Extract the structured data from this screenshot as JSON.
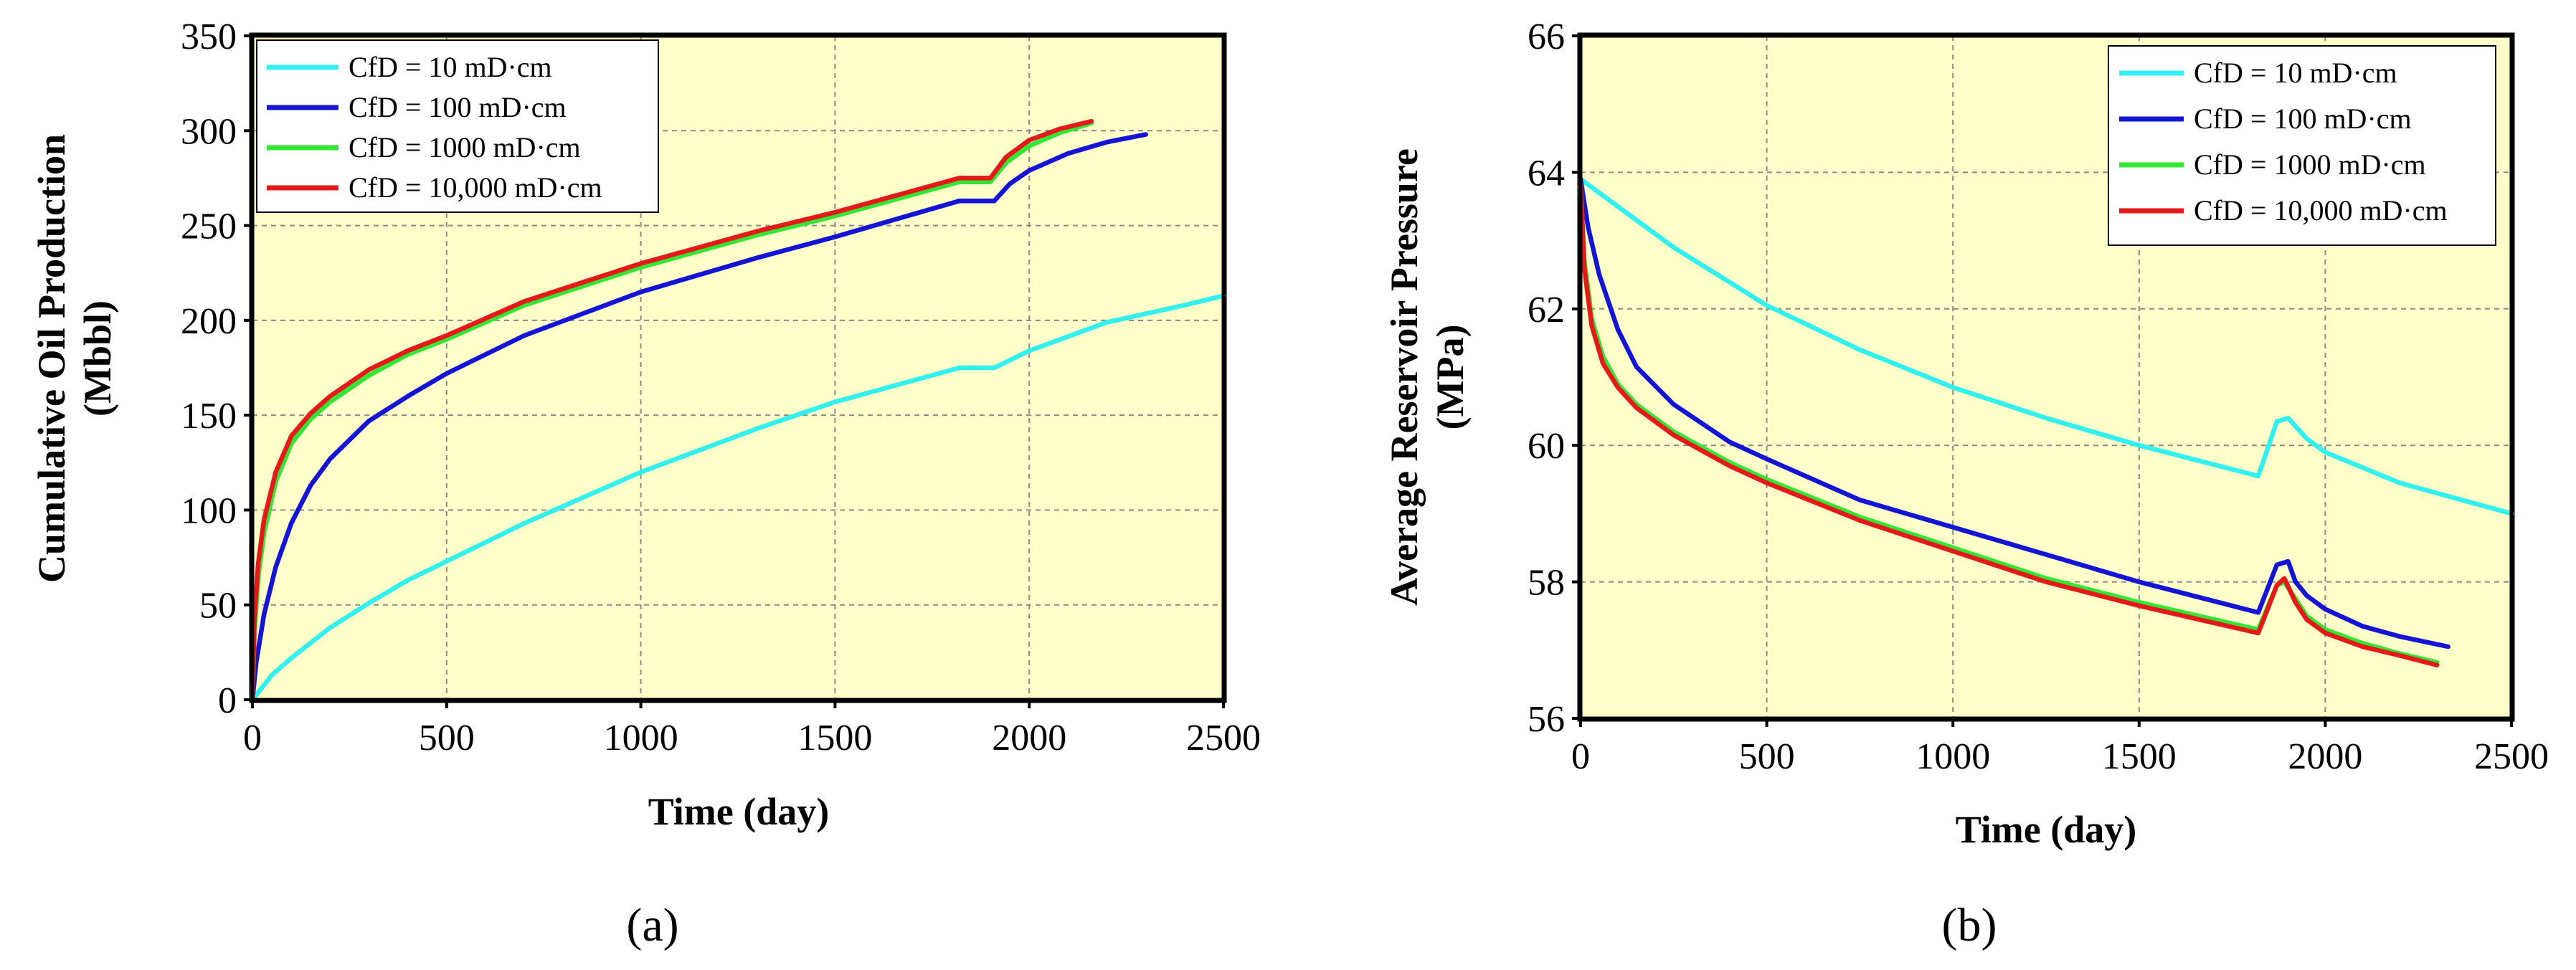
{
  "chart_data": [
    {
      "type": "line",
      "panel_label": "(a)",
      "xlabel": "Time (day)",
      "ylabel_lines": [
        "Cumulative Oil Production",
        "(Mbbl)"
      ],
      "xlim": [
        0,
        2500
      ],
      "ylim": [
        0,
        350
      ],
      "xticks": [
        0,
        500,
        1000,
        1500,
        2000,
        2500
      ],
      "yticks": [
        0,
        50,
        100,
        150,
        200,
        250,
        300,
        350
      ],
      "grid": true,
      "legend_position": "top-left",
      "series": [
        {
          "name": "CfD = 10 mD·cm",
          "color": "#33f0f0",
          "x": [
            0,
            50,
            100,
            200,
            300,
            400,
            500,
            700,
            1000,
            1300,
            1500,
            1820,
            1910,
            2000,
            2200,
            2400,
            2500
          ],
          "y": [
            0,
            13,
            22,
            38,
            51,
            63,
            73,
            93,
            120,
            143,
            157,
            175,
            175,
            184,
            199,
            208,
            213
          ]
        },
        {
          "name": "CfD = 100 mD·cm",
          "color": "#1414d4",
          "x": [
            0,
            10,
            30,
            60,
            100,
            150,
            200,
            300,
            400,
            500,
            700,
            1000,
            1300,
            1500,
            1820,
            1910,
            1950,
            2000,
            2100,
            2200,
            2300
          ],
          "y": [
            0,
            20,
            45,
            70,
            93,
            113,
            127,
            147,
            160,
            172,
            192,
            215,
            233,
            244,
            263,
            263,
            272,
            279,
            288,
            294,
            298
          ]
        },
        {
          "name": "CfD = 1000 mD·cm",
          "color": "#33e633",
          "x": [
            0,
            5,
            15,
            30,
            60,
            100,
            150,
            200,
            300,
            400,
            500,
            700,
            1000,
            1300,
            1500,
            1820,
            1900,
            1940,
            2000,
            2080,
            2160
          ],
          "y": [
            0,
            35,
            65,
            88,
            115,
            135,
            148,
            157,
            171,
            182,
            190,
            208,
            228,
            245,
            255,
            273,
            273,
            283,
            292,
            299,
            304
          ]
        },
        {
          "name": "CfD = 10,000 mD·cm",
          "color": "#e41a1a",
          "x": [
            0,
            5,
            15,
            30,
            60,
            100,
            150,
            200,
            300,
            400,
            500,
            700,
            1000,
            1300,
            1500,
            1820,
            1900,
            1940,
            2000,
            2080,
            2160
          ],
          "y": [
            0,
            42,
            72,
            95,
            120,
            139,
            151,
            160,
            174,
            184,
            192,
            210,
            230,
            247,
            257,
            275,
            275,
            286,
            295,
            301,
            305
          ]
        }
      ]
    },
    {
      "type": "line",
      "panel_label": "(b)",
      "xlabel": "Time (day)",
      "ylabel_lines": [
        "Average Reservoir Pressure",
        "(MPa)"
      ],
      "xlim": [
        0,
        2500
      ],
      "ylim": [
        56,
        66
      ],
      "xticks": [
        0,
        500,
        1000,
        1500,
        2000,
        2500
      ],
      "yticks": [
        56,
        58,
        60,
        62,
        64,
        66
      ],
      "grid": true,
      "legend_position": "top-right",
      "series": [
        {
          "name": "CfD = 10 mD·cm",
          "color": "#33f0f0",
          "x": [
            0,
            100,
            250,
            500,
            750,
            1000,
            1250,
            1500,
            1820,
            1870,
            1900,
            1950,
            2000,
            2200,
            2500
          ],
          "y": [
            63.9,
            63.5,
            62.9,
            62.05,
            61.4,
            60.85,
            60.4,
            60.0,
            59.55,
            60.35,
            60.4,
            60.1,
            59.9,
            59.45,
            59.0
          ]
        },
        {
          "name": "CfD = 100 mD·cm",
          "color": "#1414d4",
          "x": [
            0,
            20,
            50,
            100,
            150,
            250,
            400,
            500,
            750,
            1000,
            1250,
            1500,
            1820,
            1870,
            1900,
            1920,
            1950,
            2000,
            2100,
            2200,
            2330
          ],
          "y": [
            63.9,
            63.2,
            62.5,
            61.7,
            61.15,
            60.6,
            60.05,
            59.8,
            59.2,
            58.8,
            58.4,
            58.0,
            57.55,
            58.25,
            58.3,
            58.0,
            57.8,
            57.6,
            57.35,
            57.2,
            57.05
          ]
        },
        {
          "name": "CfD = 1000 mD·cm",
          "color": "#33e633",
          "x": [
            0,
            10,
            30,
            60,
            100,
            150,
            250,
            400,
            500,
            750,
            1000,
            1250,
            1500,
            1820,
            1870,
            1890,
            1920,
            1950,
            2000,
            2100,
            2200,
            2300
          ],
          "y": [
            63.8,
            62.7,
            61.85,
            61.3,
            60.9,
            60.6,
            60.2,
            59.75,
            59.5,
            58.95,
            58.5,
            58.05,
            57.7,
            57.3,
            57.95,
            58.0,
            57.75,
            57.5,
            57.3,
            57.1,
            56.95,
            56.82
          ]
        },
        {
          "name": "CfD = 10,000 mD·cm",
          "color": "#e41a1a",
          "x": [
            0,
            10,
            30,
            60,
            100,
            150,
            250,
            400,
            500,
            750,
            1000,
            1250,
            1500,
            1820,
            1870,
            1890,
            1920,
            1950,
            2000,
            2100,
            2200,
            2300
          ],
          "y": [
            63.8,
            62.6,
            61.75,
            61.2,
            60.85,
            60.55,
            60.15,
            59.7,
            59.45,
            58.9,
            58.45,
            58.0,
            57.65,
            57.25,
            57.95,
            58.05,
            57.7,
            57.45,
            57.25,
            57.05,
            56.92,
            56.78
          ]
        }
      ]
    }
  ]
}
